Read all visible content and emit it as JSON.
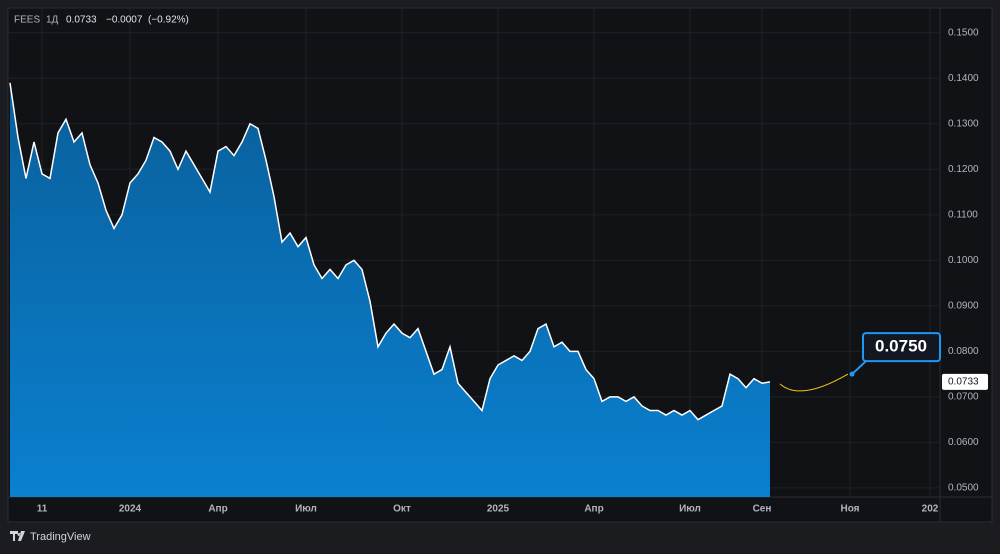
{
  "chart_data": {
    "type": "area",
    "header": {
      "interval": "1Д",
      "change": "−0.0007",
      "change_pct": "(−0.92%)"
    },
    "brand": "TradingView",
    "categories": [
      null,
      null,
      null,
      null,
      "11",
      null,
      null,
      null,
      null,
      null,
      null,
      null,
      null,
      null,
      null,
      "2024",
      null,
      null,
      null,
      null,
      null,
      null,
      null,
      null,
      null,
      null,
      "Апр",
      null,
      null,
      null,
      null,
      null,
      null,
      null,
      null,
      null,
      null,
      "Июл",
      null,
      null,
      null,
      null,
      null,
      null,
      null,
      null,
      null,
      null,
      null,
      "Окт",
      null,
      null,
      null,
      null,
      null,
      null,
      null,
      null,
      null,
      null,
      null,
      "2025",
      null,
      null,
      null,
      null,
      null,
      null,
      null,
      null,
      null,
      null,
      null,
      "Апр",
      null,
      null,
      null,
      null,
      null,
      null,
      null,
      null,
      null,
      null,
      null,
      "Июл",
      null,
      null,
      null,
      null,
      null,
      null,
      null,
      null,
      "Сен",
      null,
      null,
      null,
      null,
      null,
      null,
      null,
      null,
      null,
      null,
      "Ноя",
      null,
      null,
      null,
      null,
      null,
      null,
      null,
      null,
      null,
      "202"
    ],
    "series": [
      {
        "name": "FEES",
        "color": "#ffffff",
        "values": [
          0.139,
          0.127,
          0.118,
          0.126,
          0.119,
          0.118,
          0.128,
          0.131,
          0.126,
          0.128,
          0.121,
          0.117,
          0.111,
          0.107,
          0.11,
          0.117,
          0.119,
          0.122,
          0.127,
          0.126,
          0.124,
          0.12,
          0.124,
          0.121,
          0.118,
          0.115,
          0.124,
          0.125,
          0.123,
          0.126,
          0.13,
          0.129,
          0.122,
          0.114,
          0.104,
          0.106,
          0.103,
          0.105,
          0.099,
          0.096,
          0.098,
          0.096,
          0.099,
          0.1,
          0.098,
          0.091,
          0.081,
          0.084,
          0.086,
          0.084,
          0.083,
          0.085,
          0.08,
          0.075,
          0.076,
          0.081,
          0.073,
          0.071,
          0.069,
          0.067,
          0.074,
          0.077,
          0.078,
          0.079,
          0.078,
          0.08,
          0.085,
          0.086,
          0.081,
          0.082,
          0.08,
          0.08,
          0.076,
          0.074,
          0.069,
          0.07,
          0.07,
          0.069,
          0.07,
          0.068,
          0.067,
          0.067,
          0.066,
          0.067,
          0.066,
          0.067,
          0.065,
          0.066,
          0.067,
          0.068,
          0.075,
          0.074,
          0.072,
          0.074,
          0.073,
          0.0733,
          null,
          null,
          null,
          null,
          null,
          null,
          null,
          null,
          null,
          null,
          null,
          null,
          null,
          null,
          null,
          null,
          null,
          null,
          null,
          null
        ]
      }
    ],
    "annotation": {
      "value": 0.075,
      "label": "0.0750"
    },
    "ylim": [
      0.048,
      0.155
    ],
    "yticks": [
      {
        "value": 0.05,
        "label": "0.0500"
      },
      {
        "value": 0.06,
        "label": "0.0600"
      },
      {
        "value": 0.07,
        "label": "0.0700"
      },
      {
        "value": 0.08,
        "label": "0.0800"
      },
      {
        "value": 0.09,
        "label": "0.0900"
      },
      {
        "value": 0.1,
        "label": "0.1000"
      },
      {
        "value": 0.11,
        "label": "0.1100"
      },
      {
        "value": 0.12,
        "label": "0.1200"
      },
      {
        "value": 0.13,
        "label": "0.1300"
      },
      {
        "value": 0.14,
        "label": "0.1400"
      },
      {
        "value": 0.15,
        "label": "0.1500"
      }
    ],
    "grid": true
  }
}
